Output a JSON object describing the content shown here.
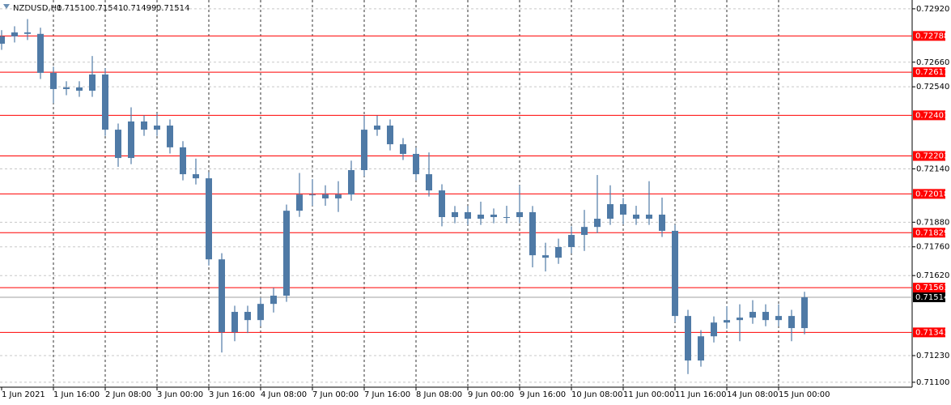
{
  "chart_data": {
    "type": "candlestick",
    "title": "NZDUSD,H1",
    "header_ohlc": [
      {
        "value": 0.7151,
        "label": "0.71510"
      },
      {
        "value": 0.71541,
        "label": "0.71541"
      },
      {
        "value": 0.71499,
        "label": "0.71499"
      },
      {
        "value": 0.71514,
        "label": "0.71514"
      }
    ],
    "color": "#4f7aa6",
    "grid": true,
    "xlim": [
      -0.5,
      281.25
    ],
    "ylim": [
      0.71076,
      0.72963
    ],
    "yticks": [
      {
        "value": 0.7292,
        "label": "0.72920"
      },
      {
        "value": 0.7266,
        "label": "0.72660"
      },
      {
        "value": 0.7254,
        "label": "0.72540"
      },
      {
        "value": 0.7214,
        "label": "0.72140"
      },
      {
        "value": 0.7188,
        "label": "0.71880"
      },
      {
        "value": 0.7176,
        "label": "0.71760"
      },
      {
        "value": 0.7162,
        "label": "0.71620"
      },
      {
        "value": 0.7123,
        "label": "0.71230"
      },
      {
        "value": 0.711,
        "label": "0.71100"
      }
    ],
    "xticks": [
      {
        "value": 0,
        "label": "1 Jun 2021"
      },
      {
        "value": 16,
        "label": "1 Jun 16:00"
      },
      {
        "value": 32,
        "label": "2 Jun 08:00"
      },
      {
        "value": 48,
        "label": "3 Jun 00:00"
      },
      {
        "value": 64,
        "label": "3 Jun 16:00"
      },
      {
        "value": 80,
        "label": "4 Jun 08:00"
      },
      {
        "value": 96,
        "label": "7 Jun 00:00"
      },
      {
        "value": 112,
        "label": "7 Jun 16:00"
      },
      {
        "value": 128,
        "label": "8 Jun 08:00"
      },
      {
        "value": 144,
        "label": "9 Jun 00:00"
      },
      {
        "value": 160,
        "label": "9 Jun 16:00"
      },
      {
        "value": 176,
        "label": "10 Jun 08:00"
      },
      {
        "value": 192,
        "label": "11 Jun 00:00"
      },
      {
        "value": 208,
        "label": "11 Jun 16:00"
      },
      {
        "value": 224,
        "label": "14 Jun 08:00"
      },
      {
        "value": 240,
        "label": "15 Jun 00:00"
      }
    ],
    "x": [
      0,
      4,
      8,
      12,
      16,
      20,
      24,
      28,
      32,
      36,
      40,
      44,
      48,
      52,
      56,
      60,
      64,
      68,
      72,
      76,
      80,
      84,
      88,
      92,
      96,
      100,
      104,
      108,
      112,
      116,
      120,
      124,
      128,
      132,
      136,
      140,
      144,
      148,
      152,
      156,
      160,
      164,
      168,
      172,
      176,
      180,
      184,
      188,
      192,
      196,
      200,
      204,
      208,
      212,
      216,
      220,
      224,
      228,
      232,
      236,
      240,
      244,
      248
    ],
    "open": [
      0.7275,
      0.72786,
      0.72805,
      0.72798,
      0.72608,
      0.72529,
      0.72537,
      0.72521,
      0.726,
      0.72331,
      0.72193,
      0.72371,
      0.72331,
      0.72351,
      0.72245,
      0.72114,
      0.72094,
      0.71699,
      0.71344,
      0.71443,
      0.71403,
      0.71482,
      0.71522,
      0.71936,
      0.72015,
      0.72015,
      0.71996,
      0.72015,
      0.72134,
      0.72331,
      0.72351,
      0.7226,
      0.72213,
      0.72114,
      0.72035,
      0.71905,
      0.71929,
      0.71897,
      0.71917,
      0.71905,
      0.71905,
      0.71929,
      0.71719,
      0.71707,
      0.71759,
      0.71818,
      0.71857,
      0.71897,
      0.71968,
      0.71917,
      0.71897,
      0.71917,
      0.71838,
      0.71423,
      0.71206,
      0.71324,
      0.71391,
      0.71403,
      0.71415,
      0.71443,
      0.71403,
      0.71423,
      0.71364
    ],
    "high": [
      0.72816,
      0.72835,
      0.7287,
      0.72828,
      0.72638,
      0.72567,
      0.72567,
      0.7269,
      0.7263,
      0.72361,
      0.7244,
      0.72401,
      0.7241,
      0.72381,
      0.72275,
      0.7219,
      0.72124,
      0.71729,
      0.71473,
      0.71473,
      0.71512,
      0.7156,
      0.71966,
      0.7212,
      0.7209,
      0.7206,
      0.7208,
      0.7218,
      0.72401,
      0.724,
      0.72381,
      0.7229,
      0.72243,
      0.7222,
      0.72065,
      0.71959,
      0.71959,
      0.7198,
      0.71947,
      0.7196,
      0.7206,
      0.71959,
      0.7178,
      0.718,
      0.7186,
      0.7194,
      0.7211,
      0.7206,
      0.71998,
      0.7196,
      0.7208,
      0.72,
      0.71868,
      0.71453,
      0.71354,
      0.71421,
      0.7147,
      0.7148,
      0.715,
      0.7148,
      0.7148,
      0.71453,
      0.71541
    ],
    "low": [
      0.7272,
      0.72756,
      0.72768,
      0.72578,
      0.7246,
      0.72499,
      0.72491,
      0.72491,
      0.72301,
      0.7215,
      0.72163,
      0.72301,
      0.72301,
      0.72215,
      0.72084,
      0.72064,
      0.71669,
      0.71245,
      0.713,
      0.7134,
      0.71373,
      0.7144,
      0.71492,
      0.71906,
      0.7196,
      0.7196,
      0.7193,
      0.71985,
      0.72104,
      0.72301,
      0.7223,
      0.72183,
      0.72084,
      0.72005,
      0.7186,
      0.71875,
      0.71867,
      0.71867,
      0.71875,
      0.71875,
      0.71875,
      0.7166,
      0.7164,
      0.71677,
      0.71729,
      0.7174,
      0.71827,
      0.71867,
      0.7187,
      0.71867,
      0.71867,
      0.71808,
      0.71393,
      0.7114,
      0.71176,
      0.71294,
      0.71361,
      0.713,
      0.71385,
      0.71373,
      0.71373,
      0.713,
      0.71334
    ],
    "close": [
      0.72786,
      0.72805,
      0.72798,
      0.72608,
      0.72529,
      0.72537,
      0.72521,
      0.726,
      0.72331,
      0.72193,
      0.72371,
      0.72331,
      0.72351,
      0.72245,
      0.72114,
      0.72094,
      0.71699,
      0.71344,
      0.71443,
      0.71403,
      0.71482,
      0.71522,
      0.71936,
      0.72015,
      0.72015,
      0.71996,
      0.72015,
      0.72134,
      0.72331,
      0.72351,
      0.7226,
      0.72213,
      0.72114,
      0.72035,
      0.71905,
      0.71929,
      0.71897,
      0.71917,
      0.71905,
      0.71905,
      0.71929,
      0.71719,
      0.71707,
      0.71759,
      0.71818,
      0.71857,
      0.71897,
      0.71968,
      0.71917,
      0.71897,
      0.71917,
      0.71838,
      0.71423,
      0.71206,
      0.71324,
      0.71391,
      0.71403,
      0.71415,
      0.71443,
      0.71403,
      0.71423,
      0.71364,
      0.71514
    ],
    "levels": {
      "color": "#ff0000",
      "values": [
        0.72788,
        0.72611,
        0.72401,
        0.72203,
        0.72018,
        0.71829,
        0.71561,
        0.71343
      ]
    },
    "current_price": 0.71514
  }
}
